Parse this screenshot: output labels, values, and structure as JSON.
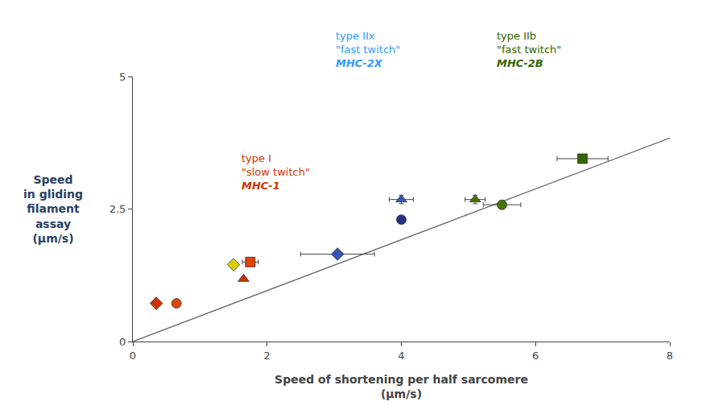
{
  "chart_data": {
    "type": "scatter",
    "xlabel": "Speed of shortening per half sarcomere\n(μm/s)",
    "ylabel": "Speed\nin gliding\nfilament\nassay\n(μm/s)",
    "xlim": [
      0,
      8
    ],
    "ylim": [
      0,
      5
    ],
    "xticks": [
      0,
      2,
      4,
      6,
      8
    ],
    "yticks": [
      0,
      2.5,
      5
    ],
    "grid": false,
    "series": [
      {
        "type": "line",
        "color": "#666666",
        "x": [
          0,
          8.0
        ],
        "values": [
          0,
          3.84
        ]
      },
      {
        "type": "scatter",
        "marker": "diamond",
        "x": [
          0.35,
          1.5,
          3.05
        ],
        "values": [
          0.72,
          1.45,
          1.65
        ],
        "xerr": [
          0.0,
          0.0,
          0.55
        ],
        "yerr": [
          0.0,
          0.0,
          0.0
        ],
        "colors": [
          "#cc3300",
          "#ddcc00",
          "#3355bb"
        ]
      },
      {
        "type": "scatter",
        "marker": "circle",
        "x": [
          0.65,
          4.0,
          5.5
        ],
        "values": [
          0.72,
          2.3,
          2.58
        ],
        "xerr": [
          0.0,
          0.0,
          0.28
        ],
        "yerr": [
          0.0,
          0.0,
          0.08
        ],
        "colors": [
          "#dd4400",
          "#223388",
          "#447700"
        ]
      },
      {
        "type": "scatter",
        "marker": "square",
        "x": [
          1.75,
          6.7
        ],
        "values": [
          1.5,
          3.45
        ],
        "xerr": [
          0.12,
          0.38
        ],
        "yerr": [
          0.08,
          0.08
        ],
        "colors": [
          "#dd4400",
          "#336600"
        ]
      },
      {
        "type": "scatter",
        "marker": "triangle",
        "x": [
          1.65,
          4.0,
          5.1
        ],
        "values": [
          1.18,
          2.68,
          2.68
        ],
        "xerr": [
          0.0,
          0.18,
          0.15
        ],
        "yerr": [
          0.0,
          0.08,
          0.08
        ],
        "colors": [
          "#cc3300",
          "#3355bb",
          "#447700"
        ]
      }
    ],
    "annotations": [
      {
        "lines": [
          "type I",
          "\"slow twitch\"",
          "MHC-1"
        ],
        "color": "#cc3300"
      },
      {
        "lines": [
          "type IIx",
          "\"fast twitch\"",
          "MHC-2X"
        ],
        "color": "#3399ff"
      },
      {
        "lines": [
          "type IIb",
          "\"fast twitch\"",
          "MHC-2B"
        ],
        "color": "#336600"
      }
    ]
  }
}
